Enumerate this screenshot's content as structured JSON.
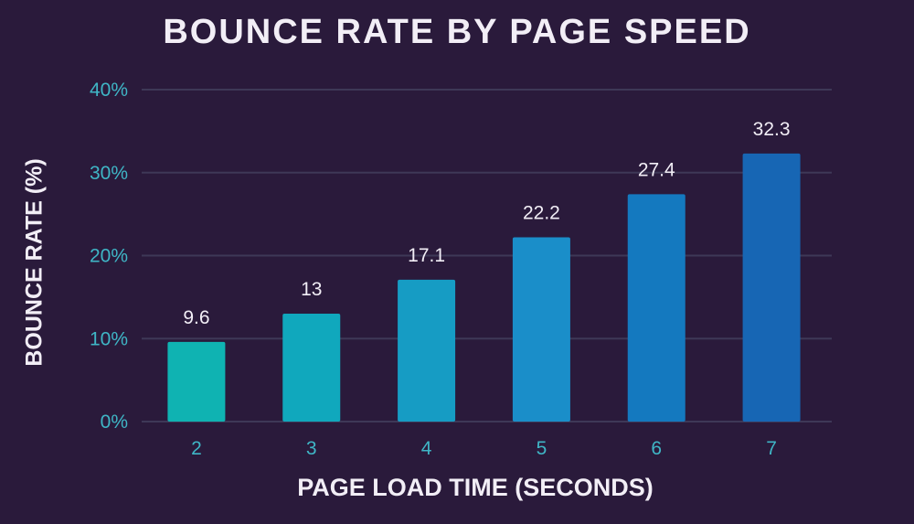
{
  "chart_data": {
    "type": "bar",
    "title": "BOUNCE RATE BY PAGE SPEED",
    "xlabel": "PAGE LOAD TIME (SECONDS)",
    "ylabel": "BOUNCE RATE (%)",
    "categories": [
      "2",
      "3",
      "4",
      "5",
      "6",
      "7"
    ],
    "values": [
      9.6,
      13,
      17.1,
      22.2,
      27.4,
      32.3
    ],
    "data_labels": [
      "9.6",
      "13",
      "17.1",
      "22.2",
      "27.4",
      "32.3"
    ],
    "ylim": [
      0,
      40
    ],
    "yticks": [
      {
        "value": 0,
        "label": "0%"
      },
      {
        "value": 10,
        "label": "10%"
      },
      {
        "value": 20,
        "label": "20%"
      },
      {
        "value": 30,
        "label": "30%"
      },
      {
        "value": 40,
        "label": "40%"
      }
    ],
    "grid": true,
    "colors": {
      "background": "#2a1a3b",
      "bars": [
        "#0fb3b2",
        "#10a8bd",
        "#169cc4",
        "#1a8ec9",
        "#1479bf",
        "#1766b4"
      ],
      "tick_text": "#3fb6c6",
      "text": "#f2eef6",
      "grid": "#3e3857"
    }
  }
}
